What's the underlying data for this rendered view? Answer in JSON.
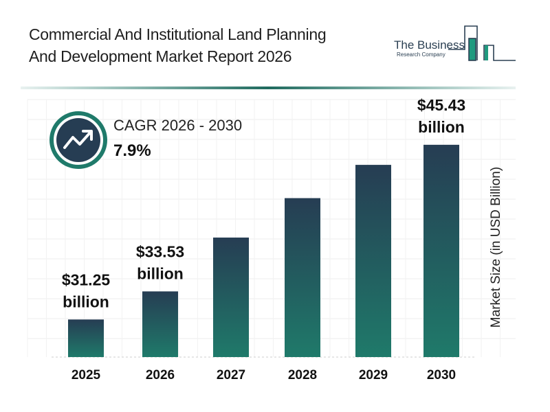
{
  "header": {
    "title_line1": "Commercial And Institutional Land Planning",
    "title_line2": "And Development Market Report 2026",
    "logo_line1": "The Business",
    "logo_line2": "Research Company"
  },
  "cagr": {
    "label": "CAGR 2026 - 2030",
    "value": "7.9%",
    "icon": "trend-up-arrow-icon"
  },
  "colors": {
    "bar_top": "#263d53",
    "bar_bottom": "#1f7a6a",
    "accent": "#1f7a6a",
    "dark": "#263d53"
  },
  "chart_data": {
    "type": "bar",
    "categories": [
      "2025",
      "2026",
      "2027",
      "2028",
      "2029",
      "2030"
    ],
    "values": [
      31.25,
      33.53,
      37.9,
      41.1,
      43.8,
      45.43
    ],
    "data_labels": [
      {
        "index": 0,
        "value": "$31.25",
        "unit": "billion"
      },
      {
        "index": 1,
        "value": "$33.53",
        "unit": "billion"
      },
      {
        "index": 5,
        "value": "$45.43",
        "unit": "billion"
      }
    ],
    "ylabel": "Market Size (in USD Billion)",
    "xlabel": "",
    "ylim": [
      28.2,
      49.1
    ],
    "grid": true,
    "legend": "none"
  }
}
